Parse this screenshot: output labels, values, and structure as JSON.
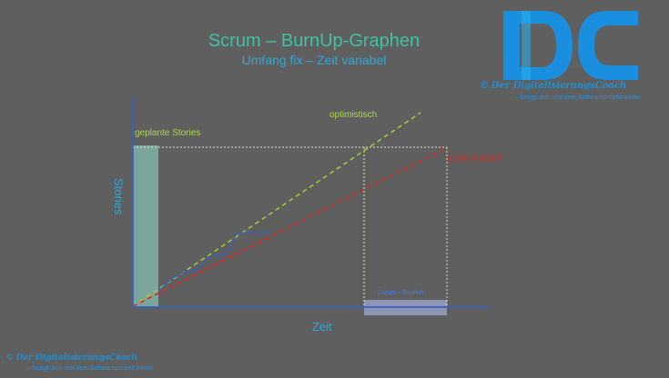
{
  "header": {
    "title": "Scrum – BurnUp-Graphen",
    "subtitle": "Umfang fix – Zeit variabel"
  },
  "brand": {
    "logo_letters": "DC",
    "copyright": "©",
    "name": "Der DigitalisierungsCoach",
    "tagline": "– bringt dich und dein Softwareprojekt weiter"
  },
  "chart": {
    "ylabel": "Stories",
    "xlabel": "Zeit",
    "planned_label": "geplante Stories",
    "optimistic_label": "optimistisch",
    "pessimistic_label": "pessimistisch",
    "range_label": "Datum - Bereich",
    "colors": {
      "axis": "#3b5fc6",
      "optimistic": "#9acd32",
      "pessimistic": "#e8241e",
      "planned_bar": "#7aa59a",
      "range_bar": "#8e96b4",
      "actual": "#3b5fc6",
      "guide": "#e6e6c6"
    }
  }
}
